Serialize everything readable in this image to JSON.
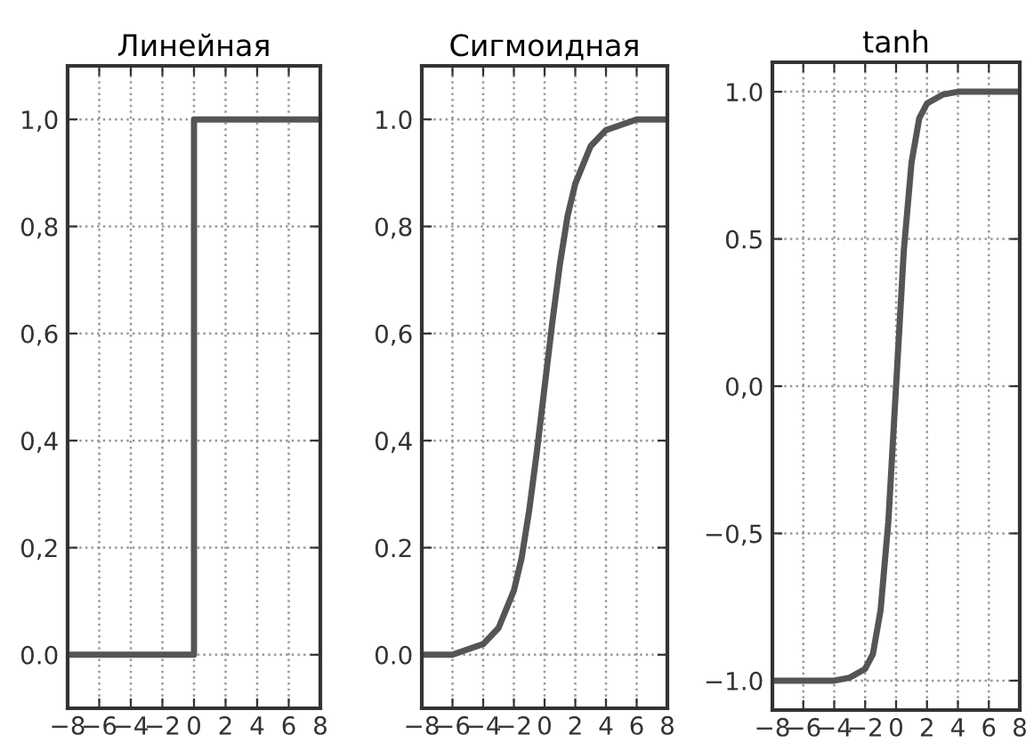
{
  "chart_data": [
    {
      "type": "line",
      "title": "Линейная",
      "color": "#555555",
      "grid": true,
      "x": [
        -8,
        0,
        0,
        8
      ],
      "values": [
        0,
        0,
        1,
        1
      ],
      "xlim": [
        -8,
        8
      ],
      "ylim": [
        -0.1,
        1.1
      ],
      "xticks": [
        {
          "value": -8,
          "label": "−8"
        },
        {
          "value": -6,
          "label": "−6"
        },
        {
          "value": -4,
          "label": "−4"
        },
        {
          "value": -2,
          "label": "−2"
        },
        0,
        2,
        4,
        6,
        8
      ],
      "yticks": [
        {
          "value": 0,
          "label": "0.0"
        },
        {
          "value": 0.2,
          "label": "0,2"
        },
        {
          "value": 0.4,
          "label": "0,4"
        },
        {
          "value": 0.6,
          "label": "0,6"
        },
        {
          "value": 0.8,
          "label": "0,8"
        },
        {
          "value": 1,
          "label": "1,0"
        }
      ]
    },
    {
      "type": "line",
      "title": "Сигмоидная",
      "color": "#555555",
      "grid": true,
      "x": [
        -8,
        -7,
        -6,
        -5,
        -4,
        -3,
        -2,
        -1.5,
        -1,
        -0.5,
        0,
        0.5,
        1,
        1.5,
        2,
        3,
        4,
        5,
        6,
        7,
        8
      ],
      "values": [
        0,
        0,
        0,
        0.01,
        0.02,
        0.05,
        0.12,
        0.18,
        0.27,
        0.38,
        0.5,
        0.62,
        0.73,
        0.82,
        0.88,
        0.95,
        0.98,
        0.99,
        1,
        1,
        1
      ],
      "xlim": [
        -8,
        8
      ],
      "ylim": [
        -0.1,
        1.1
      ],
      "xticks": [
        {
          "value": -8,
          "label": "−8"
        },
        {
          "value": -6,
          "label": "−6"
        },
        {
          "value": -4,
          "label": "−4"
        },
        {
          "value": -2,
          "label": "−2"
        },
        0,
        2,
        4,
        6,
        8
      ],
      "yticks": [
        {
          "value": 0,
          "label": "0.0"
        },
        {
          "value": 0.2,
          "label": "0.2"
        },
        {
          "value": 0.4,
          "label": "0,4"
        },
        {
          "value": 0.6,
          "label": "0,6"
        },
        {
          "value": 0.8,
          "label": "0,8"
        },
        {
          "value": 1,
          "label": "1.0"
        }
      ]
    },
    {
      "type": "line",
      "title": "tanh",
      "color": "#555555",
      "grid": true,
      "x": [
        -8,
        -7,
        -6,
        -5,
        -4,
        -3,
        -2,
        -1.5,
        -1,
        -0.5,
        0,
        0.5,
        1,
        1.5,
        2,
        3,
        4,
        5,
        6,
        7,
        8
      ],
      "values": [
        -1,
        -1,
        -1,
        -1,
        -1,
        -0.99,
        -0.96,
        -0.91,
        -0.76,
        -0.46,
        0,
        0.46,
        0.76,
        0.91,
        0.96,
        0.99,
        1,
        1,
        1,
        1,
        1
      ],
      "xlim": [
        -8,
        8
      ],
      "ylim": [
        -1.1,
        1.1
      ],
      "xticks": [
        {
          "value": -8,
          "label": "−8"
        },
        {
          "value": -6,
          "label": "−6"
        },
        {
          "value": -4,
          "label": "−4"
        },
        {
          "value": -2,
          "label": "−2"
        },
        0,
        2,
        4,
        6,
        8
      ],
      "yticks": [
        {
          "value": -1,
          "label": "−1.0"
        },
        {
          "value": -0.5,
          "label": "−0,5"
        },
        {
          "value": 0,
          "label": "0,0"
        },
        {
          "value": 0.5,
          "label": "0.5"
        },
        {
          "value": 1,
          "label": "1.0"
        }
      ]
    }
  ]
}
